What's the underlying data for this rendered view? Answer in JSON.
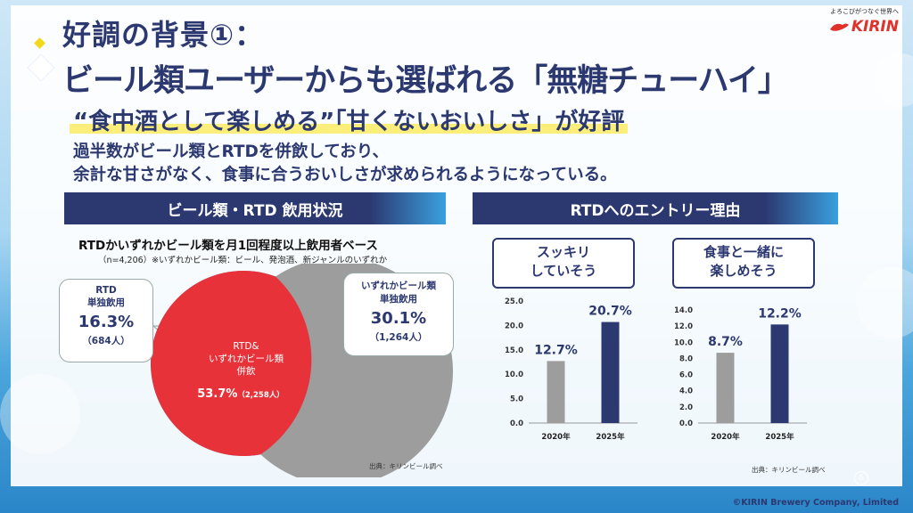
{
  "header": {
    "title_line1": "好調の背景①：",
    "title_line2": "ビール類ユーザーからも選ばれる「無糖チューハイ」",
    "subhead": "“食中酒として楽しめる”「甘くないおいしさ」が好評",
    "body_line1": "過半数がビール類とRTDを併飲しており、",
    "body_line2": "余計な甘さがなく、食事に合うおいしさが求められるようになっている。"
  },
  "logo": {
    "tagline": "よろこびがつなぐ世界へ",
    "name": "KIRIN"
  },
  "colors": {
    "navy": "#2c3870",
    "red": "#e8323a",
    "gray": "#9d9d9d",
    "blue": "#2fa2dd",
    "highlight": "#fbee7a"
  },
  "left_section": {
    "header": "ビール類・RTD 飲用状況",
    "chart_title": "RTDかいずれかビール類を月1回程度以上飲用者ベース",
    "note": "（n=4,206）※いずれかビール類：ビール、発泡酒、新ジャンルのいずれか",
    "source": "出典：キリンビール調べ"
  },
  "right_section": {
    "header": "RTDへのエントリー理由",
    "source": "出典：キリンビール調べ"
  },
  "chart_data": [
    {
      "type": "venn",
      "title": "RTDかいずれかビール類を月1回程度以上飲用者ベース",
      "sets": [
        {
          "label_line1": "RTD",
          "label_line2": "単独飲用",
          "value": "16.3%",
          "count": "（684人）",
          "color": "#2fa2dd"
        },
        {
          "label_line1": "いずれかビール類",
          "label_line2": "単独飲用",
          "value": "30.1%",
          "count": "（1,264人）",
          "color": "#9d9d9d"
        }
      ],
      "overlap": {
        "label_line1": "RTD&",
        "label_line2": "いずれかビール類",
        "label_line3": "併飲",
        "value": "53.7%",
        "count": "（2,258人）",
        "color": "#e8323a"
      }
    },
    {
      "type": "bar",
      "label_line1": "スッキリ",
      "label_line2": "していそう",
      "categories": [
        "2020年",
        "2025年"
      ],
      "values": [
        12.7,
        20.7
      ],
      "value_labels": [
        "12.7%",
        "20.7%"
      ],
      "bar_colors": [
        "#9d9d9d",
        "#2c3870"
      ],
      "ylim": [
        0,
        25
      ],
      "yticks": [
        "0.0",
        "5.0",
        "10.0",
        "15.0",
        "20.0",
        "25.0"
      ]
    },
    {
      "type": "bar",
      "label_line1": "食事と一緒に",
      "label_line2": "楽しめそう",
      "categories": [
        "2020年",
        "2025年"
      ],
      "values": [
        8.7,
        12.2
      ],
      "value_labels": [
        "8.7%",
        "12.2%"
      ],
      "bar_colors": [
        "#9d9d9d",
        "#2c3870"
      ],
      "ylim": [
        0,
        14
      ],
      "yticks": [
        "0.0",
        "2.0",
        "4.0",
        "6.0",
        "8.0",
        "10.0",
        "12.0",
        "14.0"
      ]
    }
  ],
  "footer": {
    "page": "6",
    "copyright": "©KIRIN Brewery Company, Limited"
  }
}
